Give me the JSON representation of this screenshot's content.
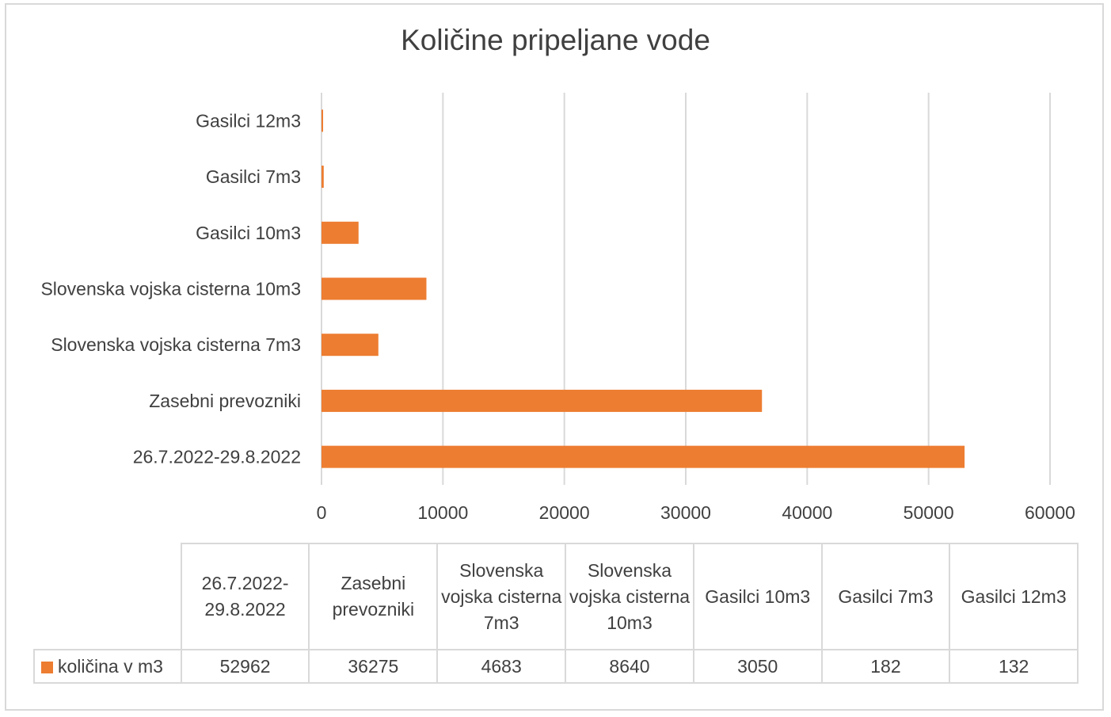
{
  "chart_data": {
    "type": "bar",
    "orientation": "horizontal",
    "title": "Količine pripeljane vode",
    "categories": [
      "26.7.2022-29.8.2022",
      "Zasebni prevozniki",
      "Slovenska vojska cisterna 7m3",
      "Slovenska vojska cisterna 10m3",
      "Gasilci 10m3",
      "Gasilci 7m3",
      "Gasilci 12m3"
    ],
    "series": [
      {
        "name": "količina v m3",
        "values": [
          52962,
          36275,
          4683,
          8640,
          3050,
          182,
          132
        ]
      }
    ],
    "xlim": [
      0,
      60000
    ],
    "ticks": [
      "0",
      "10000",
      "20000",
      "30000",
      "40000",
      "50000",
      "60000"
    ],
    "grid": true,
    "data_table": true,
    "colors": {
      "bar": "#ed7d31",
      "grid": "#d9d9d9",
      "text": "#404040"
    }
  }
}
